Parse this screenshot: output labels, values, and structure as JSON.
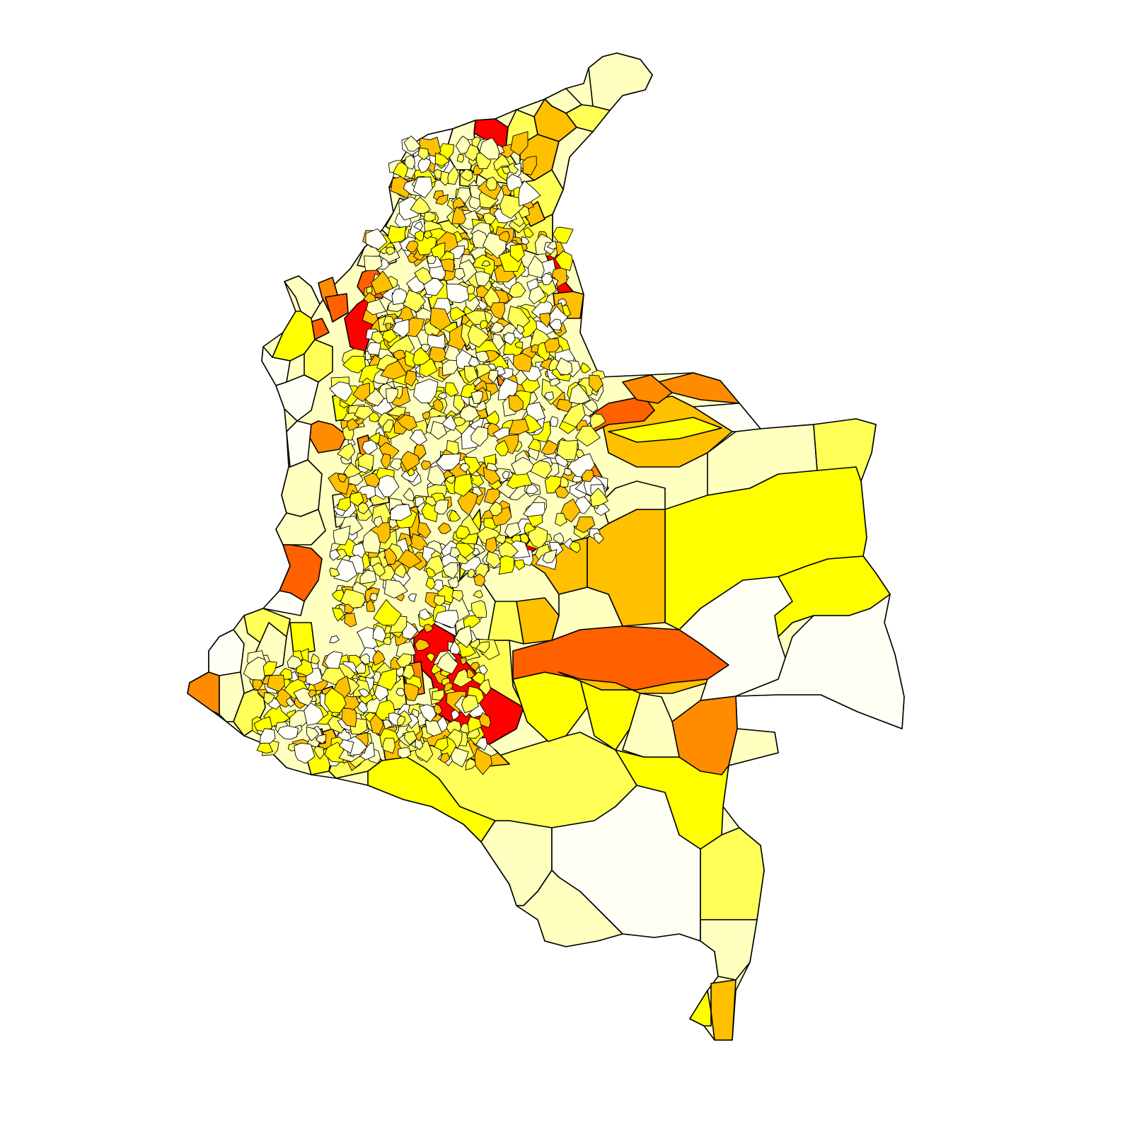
{
  "map": {
    "palette": {
      "c0": "#fffff6",
      "c1": "#ffffc0",
      "c2": "#ffff58",
      "c3": "#ffff00",
      "c4": "#ffc000",
      "c5": "#ff8c00",
      "c6": "#ff6000",
      "c7": "#ff0000"
    },
    "stroke": "#000000",
    "background": "#ffffff"
  }
}
